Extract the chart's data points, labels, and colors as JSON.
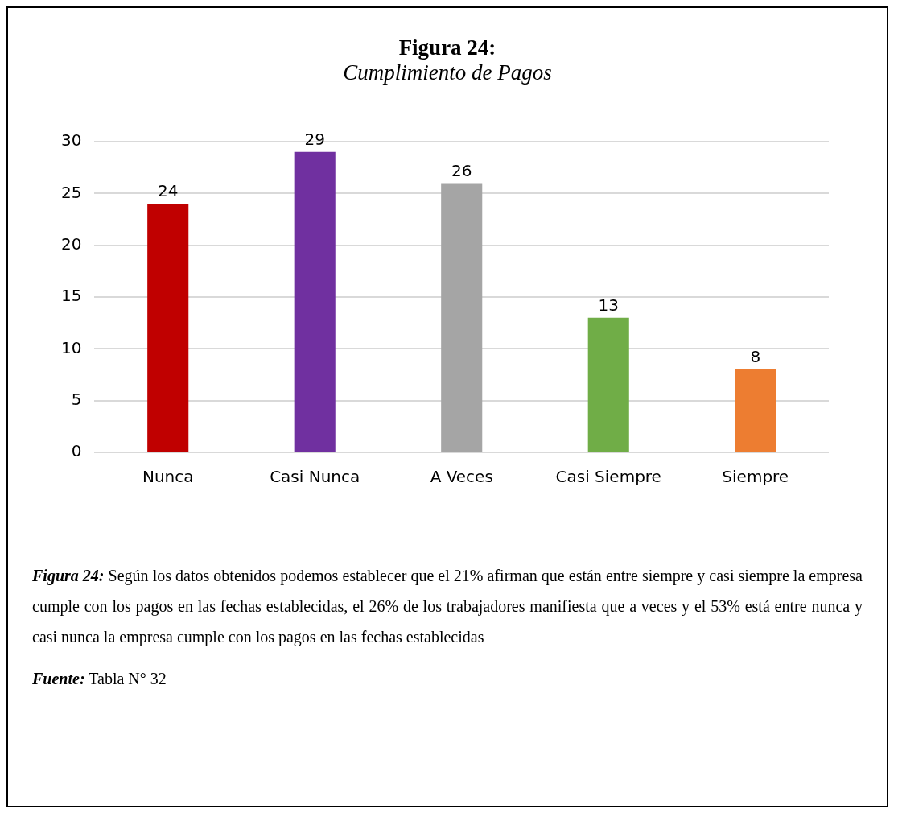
{
  "chart_data": {
    "type": "bar",
    "title": "Figura 24:",
    "subtitle": "Cumplimiento de Pagos",
    "categories": [
      "Nunca",
      "Casi Nunca",
      "A Veces",
      "Casi Siempre",
      "Siempre"
    ],
    "values": [
      24,
      29,
      26,
      13,
      8
    ],
    "colors": [
      "#c00000",
      "#7030a0",
      "#a5a5a5",
      "#70ad47",
      "#ed7d31"
    ],
    "ylim": [
      0,
      30
    ],
    "yticks": [
      0,
      5,
      10,
      15,
      20,
      25,
      30
    ],
    "grid": "y",
    "data_labels": true,
    "annotations": [
      "Figura 24: Según los datos obtenidos podemos establecer que el 21% afirman que están entre siempre y casi siempre la empresa cumple con los pagos en las fechas establecidas, el 26% de los trabajadores manifiesta que a veces y el 53% está entre nunca y casi nunca la empresa cumple con los pagos en las fechas establecidas",
      "Fuente: Tabla N° 32"
    ]
  }
}
